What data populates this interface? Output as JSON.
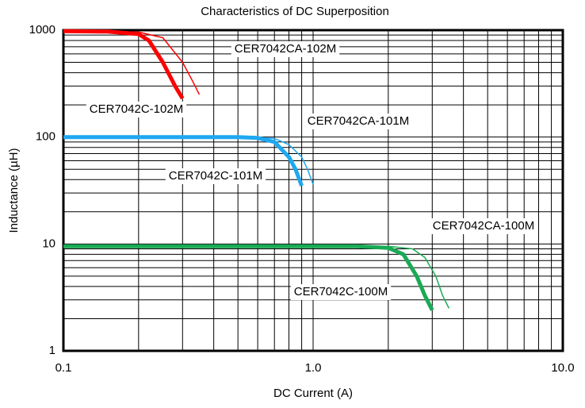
{
  "chart_data": {
    "type": "line",
    "title": "Characteristics of DC Superposition",
    "x_label": "DC Current (A)",
    "y_label": "Inductance (µH)",
    "x_scale": "log",
    "y_scale": "log",
    "grid": true,
    "minor_grid": true,
    "xlim": [
      0.1,
      10
    ],
    "ylim": [
      1,
      1000
    ],
    "xticks": [
      0.1,
      {
        "value": 1,
        "label": "1.0"
      },
      {
        "value": 10,
        "label": "10.0"
      }
    ],
    "yticks": [
      1,
      10,
      100,
      1000
    ],
    "series": [
      {
        "name": "CER7042C-102M",
        "color": "#ff0000",
        "style": "thick",
        "x": [
          0.1,
          0.15,
          0.2,
          0.22,
          0.25,
          0.28,
          0.3
        ],
        "values": [
          980,
          970,
          920,
          800,
          500,
          300,
          230
        ]
      },
      {
        "name": "CER7042CA-102M",
        "color": "#ff0000",
        "style": "thin",
        "x": [
          0.1,
          0.2,
          0.25,
          0.3,
          0.33,
          0.35
        ],
        "values": [
          980,
          960,
          850,
          500,
          330,
          250
        ]
      },
      {
        "name": "CER7042C-101M",
        "color": "#1ea8f0",
        "style": "thick",
        "x": [
          0.1,
          0.5,
          0.6,
          0.7,
          0.8,
          0.85,
          0.9
        ],
        "values": [
          100,
          100,
          98,
          90,
          65,
          50,
          35
        ]
      },
      {
        "name": "CER7042CA-101M",
        "color": "#1ea8f0",
        "style": "thin",
        "x": [
          0.1,
          0.6,
          0.7,
          0.8,
          0.9,
          0.95,
          1.0
        ],
        "values": [
          100,
          99,
          97,
          85,
          65,
          50,
          36
        ]
      },
      {
        "name": "CER7042C-100M",
        "color": "#1aaa55",
        "style": "thick",
        "x": [
          0.1,
          1.5,
          2.0,
          2.3,
          2.6,
          2.8,
          3.0
        ],
        "values": [
          9.5,
          9.5,
          9.2,
          8,
          5,
          3.3,
          2.4
        ]
      },
      {
        "name": "CER7042CA-100M",
        "color": "#1aaa55",
        "style": "thin",
        "x": [
          0.1,
          2.0,
          2.5,
          2.8,
          3.1,
          3.3,
          3.5
        ],
        "values": [
          9.5,
          9.5,
          9,
          7.5,
          5,
          3.3,
          2.5
        ]
      }
    ]
  }
}
